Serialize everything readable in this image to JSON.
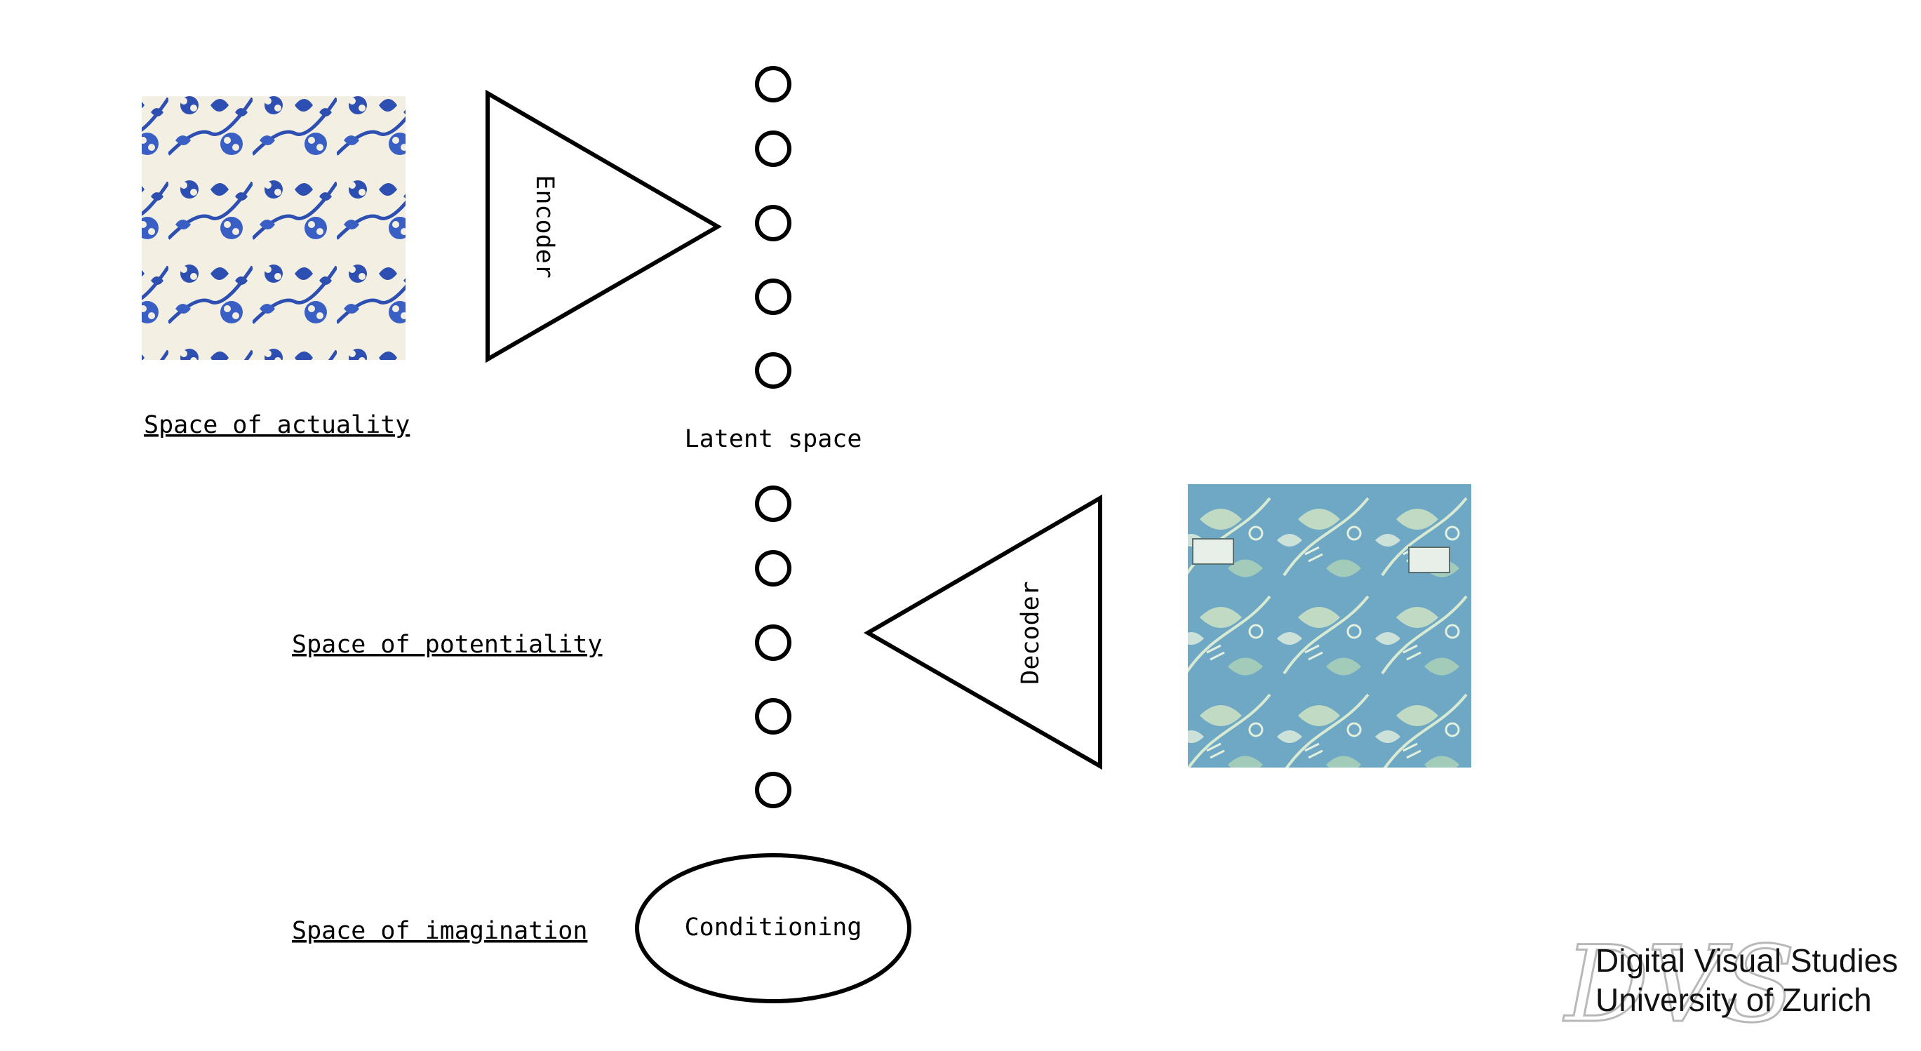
{
  "labels": {
    "space_actuality": "Space of actuality",
    "space_potentiality": "Space of potentiality",
    "space_imagination": "Space of imagination",
    "latent_space": "Latent space",
    "encoder": "Encoder",
    "decoder": "Decoder",
    "conditioning": "Conditioning"
  },
  "branding": {
    "line1": "Digital Visual Studies",
    "line2": "University of Zurich",
    "logo_letters": "DVS"
  },
  "colors": {
    "input_pattern_bg": "#f3efe2",
    "input_pattern_ink": "#2d4fb2",
    "output_pattern_bg": "#6fa8c4",
    "output_pattern_ink": "#d9ead2"
  },
  "latent_nodes_top_count": 5,
  "latent_nodes_bottom_count": 5
}
